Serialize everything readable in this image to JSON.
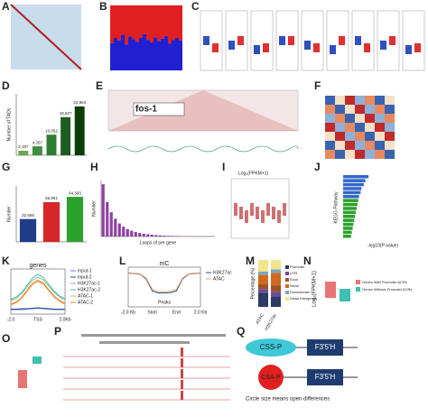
{
  "letters": [
    "A",
    "B",
    "C",
    "D",
    "E",
    "F",
    "G",
    "H",
    "I",
    "J",
    "K",
    "L",
    "M",
    "N",
    "O",
    "P",
    "Q"
  ],
  "b": {
    "type": "bar",
    "ylim": [
      0,
      1
    ],
    "values": [
      0.42,
      0.5,
      0.46,
      0.55,
      0.4,
      0.52,
      0.48,
      0.44,
      0.5,
      0.56,
      0.47,
      0.43,
      0.51,
      0.45,
      0.49,
      0.53,
      0.41,
      0.47,
      0.5,
      0.46
    ]
  },
  "d": {
    "type": "bar",
    "ylabel": "Number of TADs",
    "ylim": [
      0,
      30000
    ],
    "values": [
      2197,
      4357,
      10052,
      18627,
      23864
    ],
    "value_labels": [
      "2,197",
      "4,357",
      "10,052",
      "18,627",
      "23,864"
    ],
    "colors": [
      "#6aa84f",
      "#3c8d3c",
      "#2e7d32",
      "#1b5e20",
      "#0b3d0b"
    ]
  },
  "e": {
    "gene": "fos-1"
  },
  "g": {
    "type": "bar",
    "ylabel": "Number",
    "ylim": [
      0,
      80000
    ],
    "values": [
      32668,
      56861,
      64393
    ],
    "value_labels": [
      "32,668",
      "56,861",
      "64,393"
    ],
    "colors": [
      "#1f3c88",
      "#d62728",
      "#2ca02c"
    ]
  },
  "h": {
    "type": "bar",
    "ylabel": "Number",
    "xlabel": "Loops of per gene",
    "ylim": [
      0,
      6000
    ],
    "values": [
      5600,
      3700,
      2600,
      1900,
      1400,
      1050,
      800,
      620,
      480,
      380,
      300,
      240,
      190,
      150,
      120,
      95,
      75,
      60,
      48,
      38,
      30,
      24,
      19,
      15,
      12,
      9,
      7,
      5
    ],
    "color": "#8e3fa0"
  },
  "i": {
    "title": "Log₂(FPKM+1)"
  },
  "j": {
    "type": "barh",
    "ylabel": "KEGG Pathway",
    "xlabel": "-log10(P-value)",
    "xlim": [
      0,
      10
    ],
    "values": [
      3.2,
      2.8,
      2.6,
      2.3,
      2.2,
      2.0,
      1.9,
      1.8,
      1.7,
      1.6,
      1.5,
      1.4,
      1.3,
      1.2,
      1.1,
      1.0
    ],
    "colors": [
      "#3366cc",
      "#2ca02c"
    ]
  },
  "k": {
    "type": "line",
    "title": "genes",
    "xlabels": [
      "-2.0",
      "TSS",
      "2.0Kb"
    ],
    "ylim": [
      0,
      10
    ],
    "series": [
      {
        "name": "Input-1",
        "color": "#7b68ee",
        "values": [
          1,
          1,
          1,
          1.1,
          1.2,
          1.3,
          1.2,
          1.1,
          1,
          1,
          1
        ]
      },
      {
        "name": "Input-2",
        "color": "#1f4e9e",
        "values": [
          1.1,
          1.1,
          1.2,
          1.2,
          1.3,
          1.4,
          1.3,
          1.2,
          1.1,
          1.1,
          1.1
        ]
      },
      {
        "name": "H3K27ac-1",
        "color": "#8fbc8f",
        "values": [
          3,
          3.5,
          4.5,
          6,
          7.5,
          8.2,
          7.6,
          6.2,
          4.8,
          3.8,
          3.2
        ]
      },
      {
        "name": "H3K27ac-2",
        "color": "#40c0b0",
        "values": [
          3.2,
          3.8,
          4.8,
          6.4,
          8,
          8.8,
          8.1,
          6.6,
          5.1,
          4,
          3.4
        ]
      },
      {
        "name": "ATAC-1",
        "color": "#f4a460",
        "values": [
          2,
          2.5,
          3.5,
          5,
          6.5,
          7.2,
          6.6,
          5.2,
          3.8,
          2.8,
          2.2
        ]
      },
      {
        "name": "ATAC-2",
        "color": "#e67e22",
        "values": [
          2.2,
          2.7,
          3.7,
          5.3,
          6.8,
          7.5,
          6.9,
          5.4,
          4,
          3,
          2.4
        ]
      }
    ]
  },
  "l": {
    "type": "line",
    "title": "mC",
    "xlabels": [
      "-2.0 Kb",
      "Start",
      "End",
      "2.0 Kb"
    ],
    "region": "Peaks",
    "ylim": [
      0,
      1
    ],
    "series": [
      {
        "name": "H3K27ac",
        "color": "#1f4e9e",
        "values": [
          0.85,
          0.84,
          0.82,
          0.7,
          0.4,
          0.35,
          0.35,
          0.36,
          0.4,
          0.7,
          0.82,
          0.84,
          0.85
        ]
      },
      {
        "name": "ATAC",
        "color": "#f4a460",
        "values": [
          0.86,
          0.85,
          0.83,
          0.72,
          0.44,
          0.38,
          0.38,
          0.39,
          0.44,
          0.72,
          0.83,
          0.85,
          0.86
        ]
      }
    ]
  },
  "m": {
    "type": "stacked-bar",
    "ylabel": "Percentage (%)",
    "categories": [
      "ATAC",
      "H3K27ac"
    ],
    "ylim": [
      0,
      100
    ],
    "series": [
      {
        "name": "Promoter",
        "color": "#2b3a67",
        "values": [
          30,
          22
        ]
      },
      {
        "name": "UTR",
        "color": "#6b4c9a",
        "values": [
          8,
          10
        ]
      },
      {
        "name": "Exon",
        "color": "#a0522d",
        "values": [
          10,
          14
        ]
      },
      {
        "name": "Intron",
        "color": "#d2691e",
        "values": [
          20,
          26
        ]
      },
      {
        "name": "Downstream",
        "color": "#7aa6c2",
        "values": [
          7,
          8
        ]
      },
      {
        "name": "Distal Intergenic",
        "color": "#f0e68c",
        "values": [
          25,
          20
        ]
      }
    ]
  },
  "n": {
    "ylabel": "Log₂(FPKM+1)",
    "legend": [
      {
        "name": "Genes With Promoter ACRs",
        "color": "#e87474"
      },
      {
        "name": "Genes Without Promoter ACRs",
        "color": "#40c0b0"
      }
    ]
  },
  "q": {
    "nodes": [
      "CSS-P",
      "F3'5'H",
      "CSA-P",
      "F3'5'H"
    ],
    "note": "Circle size means open differences"
  }
}
